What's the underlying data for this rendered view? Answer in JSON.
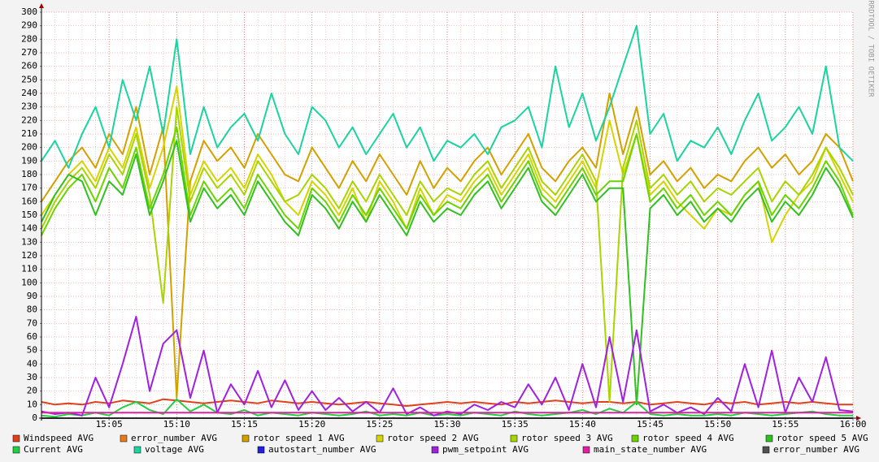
{
  "chart_data": {
    "type": "line",
    "side_text": "RRDTOOL / TOBI OETIKER",
    "x": [
      "15:00",
      "15:01",
      "15:02",
      "15:03",
      "15:04",
      "15:05",
      "15:06",
      "15:07",
      "15:08",
      "15:09",
      "15:10",
      "15:11",
      "15:12",
      "15:13",
      "15:14",
      "15:15",
      "15:16",
      "15:17",
      "15:18",
      "15:19",
      "15:20",
      "15:21",
      "15:22",
      "15:23",
      "15:24",
      "15:25",
      "15:26",
      "15:27",
      "15:28",
      "15:29",
      "15:30",
      "15:31",
      "15:32",
      "15:33",
      "15:34",
      "15:35",
      "15:36",
      "15:37",
      "15:38",
      "15:39",
      "15:40",
      "15:41",
      "15:42",
      "15:43",
      "15:44",
      "15:45",
      "15:46",
      "15:47",
      "15:48",
      "15:49",
      "15:50",
      "15:51",
      "15:52",
      "15:53",
      "15:54",
      "15:55",
      "15:56",
      "15:57",
      "15:58",
      "15:59",
      "16:00"
    ],
    "xlim": [
      "15:00",
      "16:00"
    ],
    "xticks": [
      "15:05",
      "15:10",
      "15:15",
      "15:20",
      "15:25",
      "15:30",
      "15:35",
      "15:40",
      "15:45",
      "15:50",
      "15:55",
      "16:00"
    ],
    "ylim": [
      0,
      300
    ],
    "yticks": [
      0,
      10,
      20,
      30,
      40,
      50,
      60,
      70,
      80,
      90,
      100,
      110,
      120,
      130,
      140,
      150,
      160,
      170,
      180,
      190,
      200,
      210,
      220,
      230,
      240,
      250,
      260,
      270,
      280,
      290,
      300
    ],
    "grid": true,
    "series": [
      {
        "name": "Windspeed AVG",
        "color": "#e0401a",
        "values": [
          12,
          10,
          11,
          10,
          12,
          11,
          13,
          12,
          11,
          14,
          13,
          12,
          11,
          12,
          13,
          12,
          11,
          13,
          12,
          11,
          12,
          11,
          10,
          11,
          12,
          11,
          10,
          9,
          10,
          11,
          12,
          11,
          12,
          11,
          10,
          12,
          11,
          12,
          13,
          12,
          11,
          12,
          12,
          11,
          12,
          10,
          11,
          12,
          11,
          10,
          12,
          11,
          12,
          10,
          11,
          12,
          11,
          12,
          11,
          10,
          10
        ]
      },
      {
        "name": "error_number AVG",
        "color": "#e87a1a",
        "values": [
          0,
          0,
          0,
          0,
          0,
          0,
          0,
          0,
          0,
          0,
          0,
          0,
          0,
          0,
          0,
          0,
          0,
          0,
          0,
          0,
          0,
          0,
          0,
          0,
          0,
          0,
          0,
          0,
          0,
          0,
          0,
          0,
          0,
          0,
          0,
          0,
          0,
          0,
          0,
          0,
          0,
          0,
          0,
          0,
          0,
          0,
          0,
          0,
          0,
          0,
          0,
          0,
          0,
          0,
          0,
          0,
          0,
          0,
          0,
          0,
          0
        ]
      },
      {
        "name": "rotor speed 1 AVG",
        "color": "#d4a000",
        "values": [
          160,
          175,
          190,
          200,
          185,
          210,
          195,
          230,
          180,
          215,
          15,
          175,
          205,
          190,
          200,
          185,
          210,
          195,
          180,
          175,
          200,
          185,
          170,
          190,
          175,
          195,
          180,
          165,
          190,
          170,
          185,
          175,
          190,
          200,
          180,
          195,
          210,
          185,
          175,
          190,
          200,
          185,
          240,
          195,
          230,
          180,
          190,
          175,
          185,
          170,
          180,
          175,
          190,
          200,
          185,
          195,
          180,
          190,
          210,
          200,
          175
        ]
      },
      {
        "name": "rotor speed 2 AVG",
        "color": "#d4d400",
        "values": [
          150,
          165,
          180,
          190,
          175,
          200,
          185,
          215,
          170,
          200,
          245,
          165,
          190,
          175,
          185,
          170,
          195,
          180,
          160,
          150,
          175,
          165,
          150,
          170,
          145,
          175,
          160,
          140,
          170,
          150,
          165,
          160,
          175,
          185,
          165,
          180,
          195,
          170,
          160,
          175,
          190,
          170,
          220,
          180,
          210,
          165,
          175,
          160,
          150,
          140,
          155,
          150,
          165,
          175,
          130,
          150,
          165,
          175,
          200,
          180,
          160
        ]
      },
      {
        "name": "rotor speed 3 AVG",
        "color": "#a8d400",
        "values": [
          140,
          160,
          175,
          185,
          170,
          195,
          180,
          210,
          165,
          85,
          230,
          160,
          185,
          170,
          180,
          165,
          190,
          175,
          160,
          165,
          180,
          170,
          155,
          175,
          160,
          180,
          165,
          150,
          175,
          160,
          170,
          165,
          180,
          190,
          170,
          185,
          200,
          175,
          165,
          180,
          195,
          175,
          12,
          185,
          220,
          170,
          180,
          165,
          175,
          160,
          170,
          165,
          175,
          185,
          160,
          175,
          165,
          180,
          200,
          185,
          165
        ]
      },
      {
        "name": "rotor speed 4 AVG",
        "color": "#6ad400",
        "values": [
          135,
          155,
          170,
          180,
          160,
          185,
          170,
          200,
          155,
          180,
          215,
          150,
          175,
          160,
          170,
          155,
          180,
          165,
          150,
          140,
          170,
          160,
          145,
          165,
          150,
          170,
          155,
          140,
          165,
          150,
          160,
          155,
          170,
          180,
          160,
          175,
          190,
          165,
          155,
          170,
          185,
          165,
          175,
          175,
          210,
          160,
          170,
          155,
          165,
          150,
          160,
          150,
          165,
          175,
          150,
          165,
          155,
          170,
          190,
          175,
          150
        ]
      },
      {
        "name": "rotor speed 5 AVG",
        "color": "#30c020",
        "values": [
          145,
          165,
          180,
          175,
          150,
          175,
          165,
          195,
          150,
          175,
          205,
          145,
          170,
          155,
          165,
          150,
          175,
          160,
          145,
          135,
          165,
          155,
          140,
          160,
          145,
          165,
          150,
          135,
          160,
          145,
          155,
          150,
          165,
          175,
          155,
          170,
          185,
          160,
          150,
          165,
          180,
          160,
          170,
          170,
          10,
          155,
          165,
          150,
          160,
          145,
          155,
          145,
          160,
          170,
          145,
          160,
          150,
          165,
          185,
          170,
          148
        ]
      },
      {
        "name": "Current AVG",
        "color": "#20d040",
        "values": [
          2,
          1,
          3,
          2,
          4,
          2,
          8,
          12,
          6,
          3,
          14,
          5,
          10,
          4,
          3,
          6,
          2,
          4,
          3,
          2,
          4,
          3,
          2,
          3,
          5,
          2,
          3,
          2,
          4,
          2,
          3,
          2,
          4,
          3,
          2,
          5,
          3,
          2,
          3,
          4,
          6,
          3,
          7,
          4,
          12,
          3,
          2,
          3,
          2,
          2,
          3,
          2,
          4,
          3,
          2,
          3,
          4,
          5,
          3,
          2,
          2
        ]
      },
      {
        "name": "voltage AVG",
        "color": "#1ad4a0",
        "values": [
          190,
          205,
          185,
          210,
          230,
          200,
          250,
          220,
          260,
          210,
          280,
          195,
          230,
          200,
          215,
          225,
          205,
          240,
          210,
          195,
          230,
          220,
          200,
          215,
          195,
          210,
          225,
          200,
          215,
          190,
          205,
          200,
          210,
          195,
          215,
          220,
          230,
          200,
          260,
          215,
          240,
          205,
          230,
          260,
          290,
          210,
          225,
          190,
          205,
          200,
          215,
          195,
          220,
          240,
          205,
          215,
          230,
          210,
          260,
          200,
          190
        ]
      },
      {
        "name": "autostart_number AVG",
        "color": "#2020e0",
        "values": [
          0,
          0,
          0,
          0,
          0,
          0,
          0,
          0,
          0,
          0,
          0,
          0,
          0,
          0,
          0,
          0,
          0,
          0,
          0,
          0,
          0,
          0,
          0,
          0,
          0,
          0,
          0,
          0,
          0,
          0,
          0,
          0,
          0,
          0,
          0,
          0,
          0,
          0,
          0,
          0,
          0,
          0,
          0,
          0,
          0,
          0,
          0,
          0,
          0,
          0,
          0,
          0,
          0,
          0,
          0,
          0,
          0,
          0,
          0,
          0,
          0
        ]
      },
      {
        "name": "pwm_setpoint AVG",
        "color": "#a020e0",
        "values": [
          5,
          3,
          4,
          2,
          30,
          8,
          40,
          75,
          20,
          55,
          65,
          15,
          50,
          4,
          25,
          10,
          35,
          8,
          28,
          6,
          20,
          6,
          15,
          5,
          12,
          4,
          22,
          3,
          8,
          2,
          5,
          3,
          10,
          6,
          12,
          8,
          25,
          10,
          30,
          6,
          40,
          8,
          60,
          12,
          65,
          5,
          10,
          4,
          8,
          3,
          15,
          5,
          40,
          8,
          50,
          4,
          30,
          12,
          45,
          6,
          5
        ]
      },
      {
        "name": "main_state_number AVG",
        "color": "#e020a0",
        "values": [
          4,
          4,
          4,
          4,
          4,
          4,
          4,
          4,
          4,
          4,
          4,
          4,
          4,
          4,
          4,
          4,
          4,
          4,
          4,
          4,
          4,
          4,
          4,
          4,
          4,
          4,
          4,
          4,
          4,
          4,
          4,
          4,
          4,
          4,
          4,
          4,
          4,
          4,
          4,
          4,
          4,
          4,
          4,
          4,
          4,
          4,
          4,
          4,
          4,
          4,
          4,
          4,
          4,
          4,
          4,
          4,
          4,
          4,
          4,
          4,
          4
        ]
      },
      {
        "name": "error_number AVG",
        "color": "#505050",
        "values": [
          0,
          0,
          0,
          0,
          0,
          0,
          0,
          0,
          0,
          0,
          0,
          0,
          0,
          0,
          0,
          0,
          0,
          0,
          0,
          0,
          0,
          0,
          0,
          0,
          0,
          0,
          0,
          0,
          0,
          0,
          0,
          0,
          0,
          0,
          0,
          0,
          0,
          0,
          0,
          0,
          0,
          0,
          0,
          0,
          0,
          0,
          0,
          0,
          0,
          0,
          0,
          0,
          0,
          0,
          0,
          0,
          0,
          0,
          0,
          0,
          0
        ]
      }
    ]
  }
}
